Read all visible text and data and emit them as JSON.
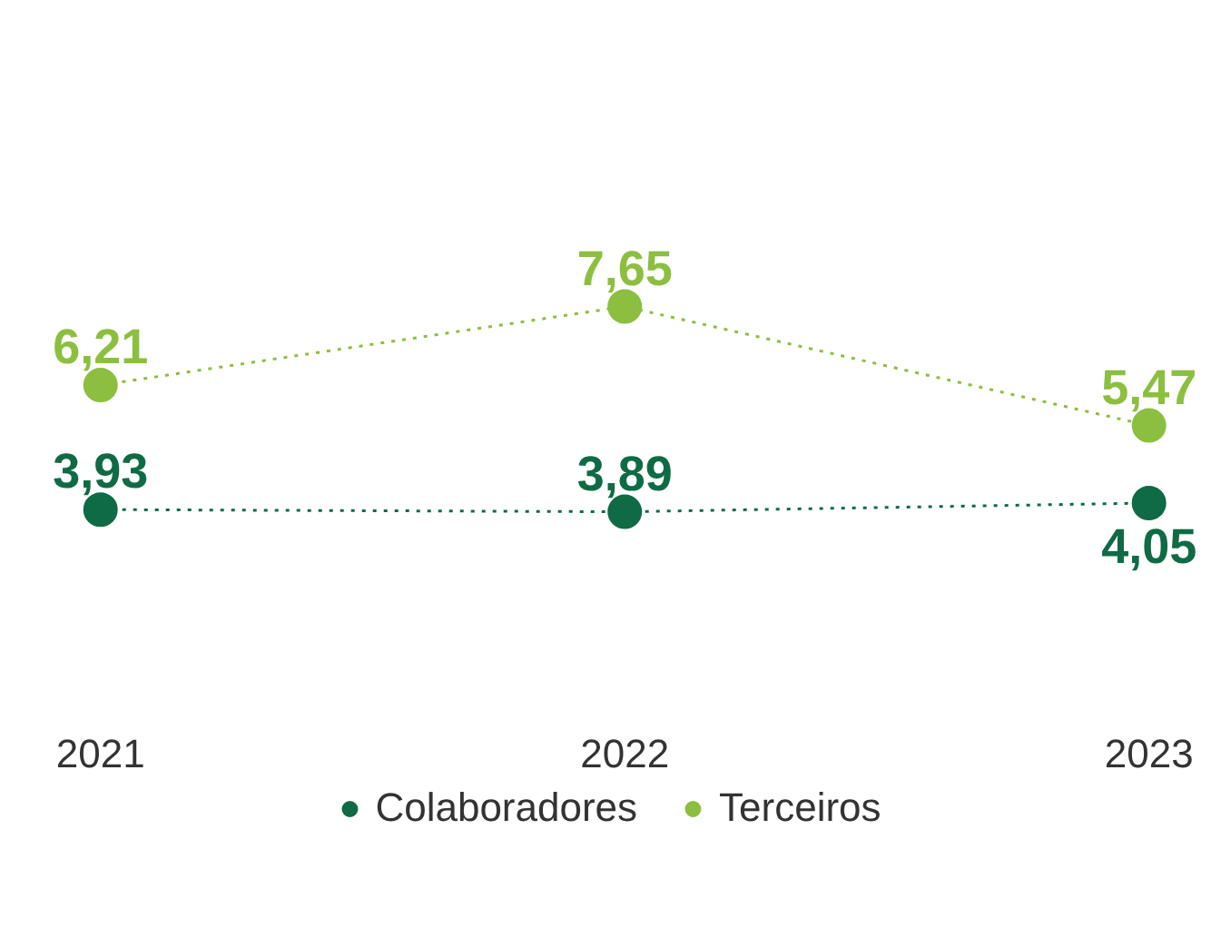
{
  "chart_data": {
    "type": "line",
    "categories": [
      "2021",
      "2022",
      "2023"
    ],
    "series": [
      {
        "name": "Colaboradores",
        "color": "#0f6b45",
        "values": [
          3.93,
          3.89,
          4.05
        ],
        "value_labels": [
          "3,93",
          "3,89",
          "4,05"
        ]
      },
      {
        "name": "Terceiros",
        "color": "#8cbf3f",
        "values": [
          6.21,
          7.65,
          5.47
        ],
        "value_labels": [
          "6,21",
          "7,65",
          "5,47"
        ]
      }
    ],
    "tick_labels": "x",
    "marker": "circle",
    "line_style": "dotted",
    "grid": false,
    "legend": "bottom"
  }
}
